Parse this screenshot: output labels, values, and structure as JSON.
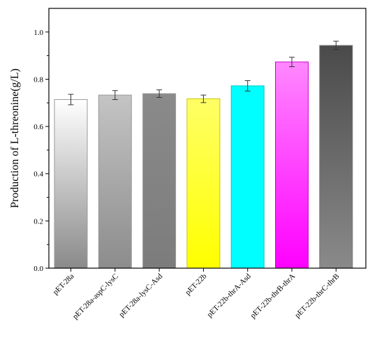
{
  "chart_data": {
    "type": "bar",
    "title": "",
    "xlabel": "",
    "ylabel": "Production of L-threonine(g/L)",
    "ylim": [
      0.0,
      1.1
    ],
    "yticks": [
      "0.0",
      "0.2",
      "0.4",
      "0.6",
      "0.8",
      "1.0"
    ],
    "grid": false,
    "categories": [
      "pET-28a",
      "pET-28a-aspC-lysC",
      "pET-28a-lysC-Asd",
      "pET-22b",
      "pET-22b-thrA-Asd",
      "pET-22b-thrB-thrA",
      "pET-22b-thrC-thrB"
    ],
    "values": [
      0.714,
      0.733,
      0.739,
      0.717,
      0.772,
      0.873,
      0.943
    ],
    "errors": [
      0.022,
      0.019,
      0.016,
      0.016,
      0.022,
      0.02,
      0.018
    ],
    "bar_styles": [
      {
        "top": "#ffffff",
        "bottom": "#8a8a8a",
        "stroke": "#9a9a9a"
      },
      {
        "top": "#c4c4c4",
        "bottom": "#8c8c8c",
        "stroke": "#9a9a9a"
      },
      {
        "top": "#8a8a8a",
        "bottom": "#7c7c7c",
        "stroke": "#9a9a9a"
      },
      {
        "top": "#ffff66",
        "bottom": "#ffff00",
        "stroke": "#c8c800"
      },
      {
        "top": "#00ffff",
        "bottom": "#00ffff",
        "stroke": "#00c8c8"
      },
      {
        "top": "#ff88ff",
        "bottom": "#ff00ff",
        "stroke": "#d000d0"
      },
      {
        "top": "#4a4a4a",
        "bottom": "#8a8a8a",
        "stroke": "#777777"
      }
    ]
  }
}
